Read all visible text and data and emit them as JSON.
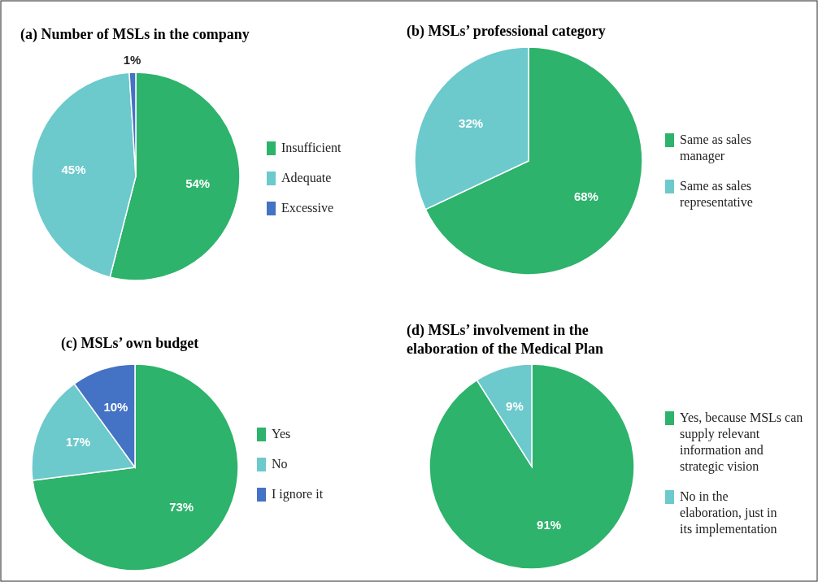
{
  "chart_data": [
    {
      "type": "pie",
      "title": "(a) Number of MSLs in the company",
      "categories": [
        "Insufficient",
        "Adequate",
        "Excessive"
      ],
      "values": [
        54,
        45,
        1
      ],
      "value_labels": [
        "54%",
        "45%",
        "1%"
      ],
      "colors": [
        "#2db36b",
        "#6cc9cc",
        "#4472c4"
      ],
      "legend": "right"
    },
    {
      "type": "pie",
      "title": "(b) MSLs’ professional category",
      "categories": [
        "Same as sales manager",
        "Same as sales representative"
      ],
      "values": [
        68,
        32
      ],
      "value_labels": [
        "68%",
        "32%"
      ],
      "colors": [
        "#2db36b",
        "#6cc9cc"
      ],
      "legend": "right"
    },
    {
      "type": "pie",
      "title": "(c) MSLs’ own budget",
      "categories": [
        "Yes",
        "No",
        "I ignore it"
      ],
      "values": [
        73,
        17,
        10
      ],
      "value_labels": [
        "73%",
        "17%",
        "10%"
      ],
      "colors": [
        "#2db36b",
        "#6cc9cc",
        "#4472c4"
      ],
      "legend": "right"
    },
    {
      "type": "pie",
      "title": "(d) MSLs’ involvement in the elaboration of the Medical Plan",
      "categories": [
        "Yes, because MSLs can supply relevant information and strategic vision",
        "No in the elaboration, just in its implementation"
      ],
      "values": [
        91,
        9
      ],
      "value_labels": [
        "91%",
        "9%"
      ],
      "colors": [
        "#2db36b",
        "#6cc9cc"
      ],
      "legend": "right"
    }
  ]
}
